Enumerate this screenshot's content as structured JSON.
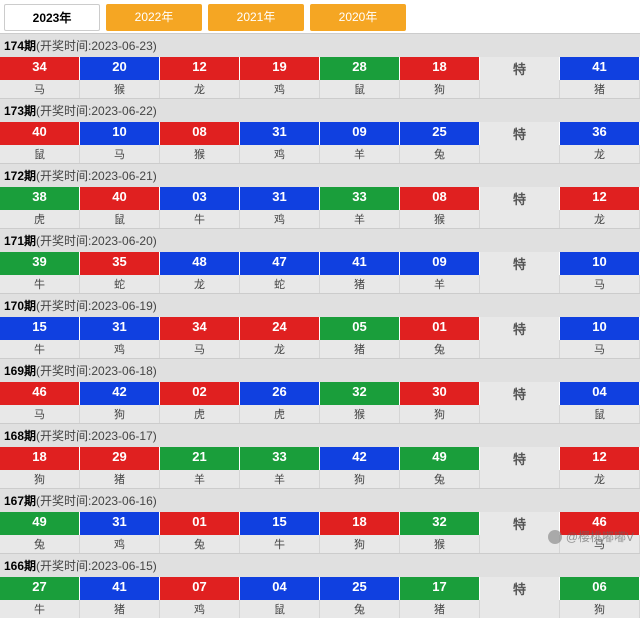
{
  "tabs": [
    "2023年",
    "2022年",
    "2021年",
    "2020年"
  ],
  "activeTab": 0,
  "colors": {
    "g": "#1a9e3b",
    "r": "#e02020",
    "b": "#1040e0",
    "tabBg": "#f5a623"
  },
  "teLabel": "特",
  "watermark": "@樱桃嘟嘟V",
  "draws": [
    {
      "issue": "174",
      "date": "2023-06-23",
      "balls": [
        {
          "n": "34",
          "c": "r",
          "z": "马"
        },
        {
          "n": "20",
          "c": "b",
          "z": "猴"
        },
        {
          "n": "12",
          "c": "r",
          "z": "龙"
        },
        {
          "n": "19",
          "c": "r",
          "z": "鸡"
        },
        {
          "n": "28",
          "c": "g",
          "z": "鼠"
        },
        {
          "n": "18",
          "c": "r",
          "z": "狗"
        }
      ],
      "special": {
        "n": "41",
        "c": "b",
        "z": "猪"
      }
    },
    {
      "issue": "173",
      "date": "2023-06-22",
      "balls": [
        {
          "n": "40",
          "c": "r",
          "z": "鼠"
        },
        {
          "n": "10",
          "c": "b",
          "z": "马"
        },
        {
          "n": "08",
          "c": "r",
          "z": "猴"
        },
        {
          "n": "31",
          "c": "b",
          "z": "鸡"
        },
        {
          "n": "09",
          "c": "b",
          "z": "羊"
        },
        {
          "n": "25",
          "c": "b",
          "z": "兔"
        }
      ],
      "special": {
        "n": "36",
        "c": "b",
        "z": "龙"
      }
    },
    {
      "issue": "172",
      "date": "2023-06-21",
      "balls": [
        {
          "n": "38",
          "c": "g",
          "z": "虎"
        },
        {
          "n": "40",
          "c": "r",
          "z": "鼠"
        },
        {
          "n": "03",
          "c": "b",
          "z": "牛"
        },
        {
          "n": "31",
          "c": "b",
          "z": "鸡"
        },
        {
          "n": "33",
          "c": "g",
          "z": "羊"
        },
        {
          "n": "08",
          "c": "r",
          "z": "猴"
        }
      ],
      "special": {
        "n": "12",
        "c": "r",
        "z": "龙"
      }
    },
    {
      "issue": "171",
      "date": "2023-06-20",
      "balls": [
        {
          "n": "39",
          "c": "g",
          "z": "牛"
        },
        {
          "n": "35",
          "c": "r",
          "z": "蛇"
        },
        {
          "n": "48",
          "c": "b",
          "z": "龙"
        },
        {
          "n": "47",
          "c": "b",
          "z": "蛇"
        },
        {
          "n": "41",
          "c": "b",
          "z": "猪"
        },
        {
          "n": "09",
          "c": "b",
          "z": "羊"
        }
      ],
      "special": {
        "n": "10",
        "c": "b",
        "z": "马"
      }
    },
    {
      "issue": "170",
      "date": "2023-06-19",
      "balls": [
        {
          "n": "15",
          "c": "b",
          "z": "牛"
        },
        {
          "n": "31",
          "c": "b",
          "z": "鸡"
        },
        {
          "n": "34",
          "c": "r",
          "z": "马"
        },
        {
          "n": "24",
          "c": "r",
          "z": "龙"
        },
        {
          "n": "05",
          "c": "g",
          "z": "猪"
        },
        {
          "n": "01",
          "c": "r",
          "z": "兔"
        }
      ],
      "special": {
        "n": "10",
        "c": "b",
        "z": "马"
      }
    },
    {
      "issue": "169",
      "date": "2023-06-18",
      "balls": [
        {
          "n": "46",
          "c": "r",
          "z": "马"
        },
        {
          "n": "42",
          "c": "b",
          "z": "狗"
        },
        {
          "n": "02",
          "c": "r",
          "z": "虎"
        },
        {
          "n": "26",
          "c": "b",
          "z": "虎"
        },
        {
          "n": "32",
          "c": "g",
          "z": "猴"
        },
        {
          "n": "30",
          "c": "r",
          "z": "狗"
        }
      ],
      "special": {
        "n": "04",
        "c": "b",
        "z": "鼠"
      }
    },
    {
      "issue": "168",
      "date": "2023-06-17",
      "balls": [
        {
          "n": "18",
          "c": "r",
          "z": "狗"
        },
        {
          "n": "29",
          "c": "r",
          "z": "猪"
        },
        {
          "n": "21",
          "c": "g",
          "z": "羊"
        },
        {
          "n": "33",
          "c": "g",
          "z": "羊"
        },
        {
          "n": "42",
          "c": "b",
          "z": "狗"
        },
        {
          "n": "49",
          "c": "g",
          "z": "兔"
        }
      ],
      "special": {
        "n": "12",
        "c": "r",
        "z": "龙"
      }
    },
    {
      "issue": "167",
      "date": "2023-06-16",
      "balls": [
        {
          "n": "49",
          "c": "g",
          "z": "兔"
        },
        {
          "n": "31",
          "c": "b",
          "z": "鸡"
        },
        {
          "n": "01",
          "c": "r",
          "z": "兔"
        },
        {
          "n": "15",
          "c": "b",
          "z": "牛"
        },
        {
          "n": "18",
          "c": "r",
          "z": "狗"
        },
        {
          "n": "32",
          "c": "g",
          "z": "猴"
        }
      ],
      "special": {
        "n": "46",
        "c": "r",
        "z": "马"
      }
    },
    {
      "issue": "166",
      "date": "2023-06-15",
      "balls": [
        {
          "n": "27",
          "c": "g",
          "z": "牛"
        },
        {
          "n": "41",
          "c": "b",
          "z": "猪"
        },
        {
          "n": "07",
          "c": "r",
          "z": "鸡"
        },
        {
          "n": "04",
          "c": "b",
          "z": "鼠"
        },
        {
          "n": "25",
          "c": "b",
          "z": "兔"
        },
        {
          "n": "17",
          "c": "g",
          "z": "猪"
        }
      ],
      "special": {
        "n": "06",
        "c": "g",
        "z": "狗"
      }
    }
  ]
}
